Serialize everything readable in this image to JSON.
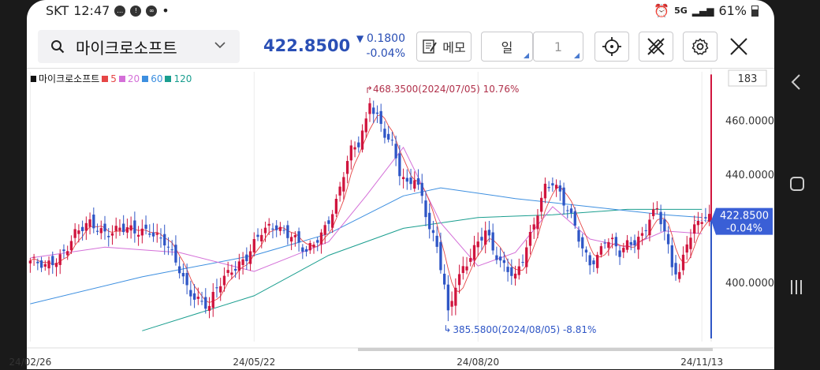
{
  "status": {
    "carrier": "SKT",
    "time": "12:47",
    "network": "5G",
    "battery": "61%"
  },
  "toolbar": {
    "stock_name": "마이크로소프트",
    "price": "422.8500",
    "change": "0.1800",
    "change_pct": "-0.04%",
    "memo_label": "메모",
    "period_label": "일",
    "period_count": "1"
  },
  "colors": {
    "up": "#d0153e",
    "down": "#2f56c6",
    "ma5": "#e64646",
    "ma20": "#d46fd8",
    "ma60": "#3d8fe0",
    "ma120": "#1a9e8f"
  },
  "chart_data": {
    "type": "candlestick",
    "instrument": "마이크로소프트",
    "visible_bars": "183",
    "ylim": [
      378,
      478
    ],
    "yticks": [
      "460.0000",
      "440.0000",
      "400.0000"
    ],
    "ytick_values": [
      460,
      440,
      400
    ],
    "x_ticks": [
      "24/02/26",
      "24/05/22",
      "24/08/20",
      "24/11/13"
    ],
    "x_tick_index": [
      0,
      60,
      120,
      180
    ],
    "legend": [
      {
        "label": "마이크로소프트",
        "color": "#111111"
      },
      {
        "label": "5",
        "color": "#e64646"
      },
      {
        "label": "20",
        "color": "#d46fd8"
      },
      {
        "label": "60",
        "color": "#3d8fe0"
      },
      {
        "label": "120",
        "color": "#1a9e8f"
      }
    ],
    "current_price_label": "422.8500",
    "current_change_label": "-0.04%",
    "current_price": 422.85,
    "high_annotation": "468.3500(2024/07/05) 10.76%",
    "high": {
      "index": 91,
      "value": 468.35
    },
    "low_annotation": "385.5800(2024/08/05) -8.81%",
    "low": {
      "index": 112,
      "value": 385.58
    },
    "close_points": [
      [
        0,
        408
      ],
      [
        4,
        405
      ],
      [
        8,
        410
      ],
      [
        12,
        418
      ],
      [
        16,
        421
      ],
      [
        20,
        419
      ],
      [
        24,
        420
      ],
      [
        28,
        418
      ],
      [
        32,
        420
      ],
      [
        36,
        415
      ],
      [
        40,
        404
      ],
      [
        42,
        398
      ],
      [
        46,
        393
      ],
      [
        48,
        391
      ],
      [
        50,
        397
      ],
      [
        54,
        405
      ],
      [
        58,
        410
      ],
      [
        62,
        418
      ],
      [
        66,
        421
      ],
      [
        70,
        418
      ],
      [
        74,
        410
      ],
      [
        78,
        418
      ],
      [
        80,
        424
      ],
      [
        82,
        430
      ],
      [
        84,
        440
      ],
      [
        86,
        448
      ],
      [
        88,
        451
      ],
      [
        90,
        460
      ],
      [
        91,
        467
      ],
      [
        93,
        462
      ],
      [
        95,
        455
      ],
      [
        97,
        450
      ],
      [
        99,
        440
      ],
      [
        101,
        436
      ],
      [
        103,
        440
      ],
      [
        105,
        432
      ],
      [
        107,
        420
      ],
      [
        109,
        412
      ],
      [
        111,
        398
      ],
      [
        112,
        388
      ],
      [
        114,
        400
      ],
      [
        116,
        406
      ],
      [
        118,
        410
      ],
      [
        120,
        414
      ],
      [
        122,
        418
      ],
      [
        124,
        412
      ],
      [
        126,
        408
      ],
      [
        128,
        406
      ],
      [
        130,
        402
      ],
      [
        132,
        408
      ],
      [
        134,
        416
      ],
      [
        136,
        426
      ],
      [
        138,
        436
      ],
      [
        140,
        438
      ],
      [
        142,
        433
      ],
      [
        144,
        426
      ],
      [
        146,
        420
      ],
      [
        148,
        412
      ],
      [
        150,
        408
      ],
      [
        152,
        410
      ],
      [
        154,
        416
      ],
      [
        156,
        414
      ],
      [
        158,
        410
      ],
      [
        160,
        414
      ],
      [
        162,
        416
      ],
      [
        164,
        418
      ],
      [
        166,
        424
      ],
      [
        168,
        426
      ],
      [
        170,
        418
      ],
      [
        172,
        406
      ],
      [
        174,
        404
      ],
      [
        176,
        416
      ],
      [
        178,
        420
      ],
      [
        180,
        422.85
      ]
    ],
    "ma_points": {
      "ma20": [
        [
          0,
          409
        ],
        [
          20,
          413
        ],
        [
          40,
          411
        ],
        [
          60,
          404
        ],
        [
          80,
          415
        ],
        [
          90,
          432
        ],
        [
          100,
          450
        ],
        [
          110,
          422
        ],
        [
          120,
          406
        ],
        [
          130,
          411
        ],
        [
          140,
          428
        ],
        [
          150,
          416
        ],
        [
          160,
          413
        ],
        [
          170,
          419
        ],
        [
          180,
          418
        ]
      ],
      "ma60": [
        [
          0,
          392
        ],
        [
          30,
          402
        ],
        [
          60,
          410
        ],
        [
          80,
          418
        ],
        [
          100,
          432
        ],
        [
          110,
          435
        ],
        [
          130,
          431
        ],
        [
          150,
          428
        ],
        [
          170,
          425
        ],
        [
          180,
          424
        ]
      ],
      "ma120": [
        [
          30,
          382
        ],
        [
          60,
          395
        ],
        [
          80,
          410
        ],
        [
          100,
          420
        ],
        [
          120,
          424
        ],
        [
          140,
          425
        ],
        [
          160,
          427
        ],
        [
          180,
          427
        ]
      ]
    }
  }
}
